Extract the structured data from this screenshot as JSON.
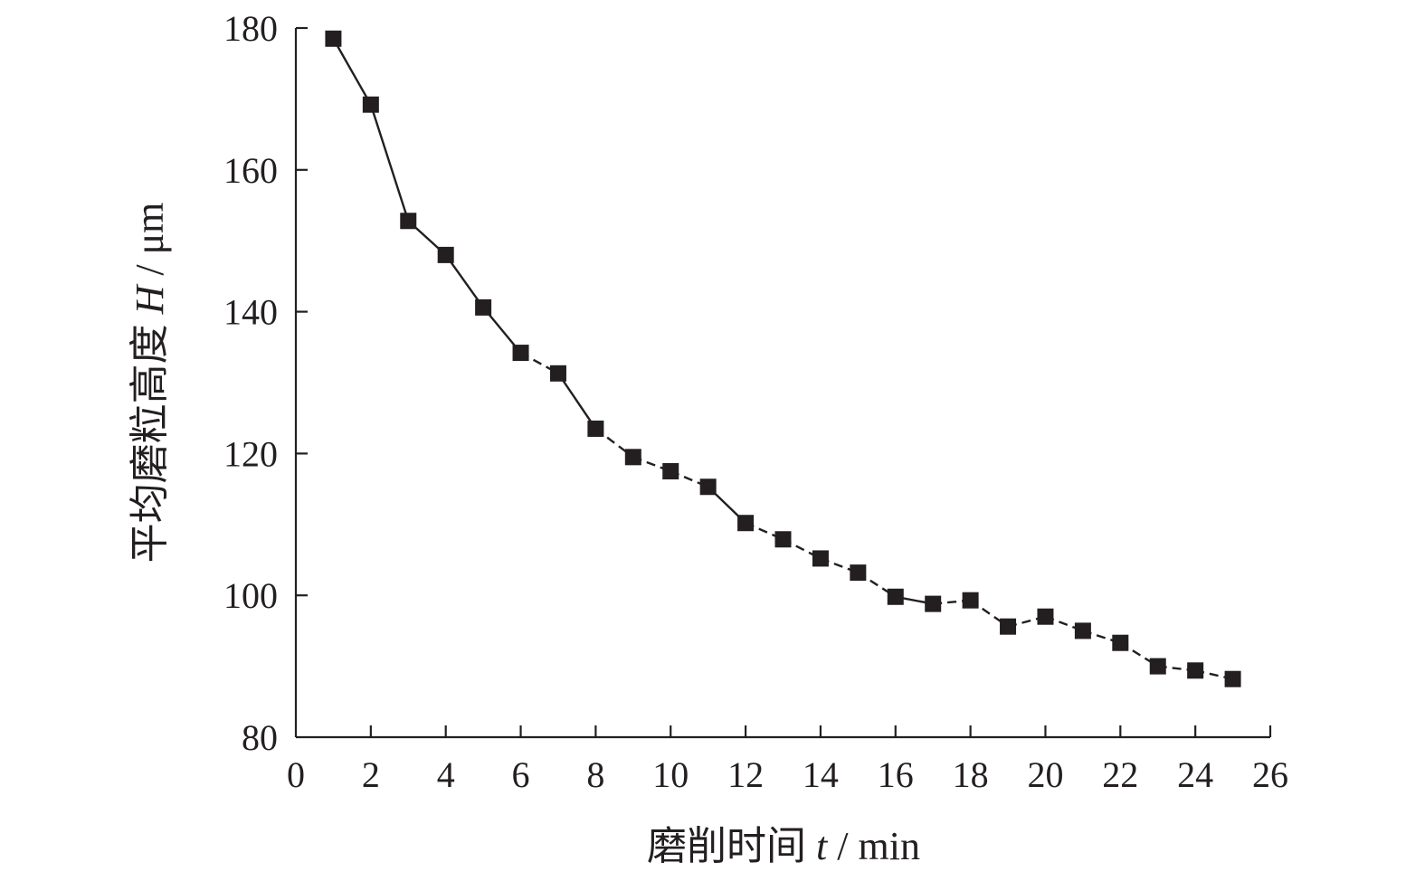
{
  "chart_data": {
    "type": "line",
    "marker": "square",
    "line_style_segments": [
      "solid",
      "solid",
      "solid",
      "solid",
      "solid",
      "dashed",
      "solid",
      "dashed",
      "dashed",
      "dashed",
      "solid",
      "dashed",
      "dashed",
      "dashed",
      "dashed",
      "solid",
      "dashed",
      "dashed",
      "dashed",
      "dashed",
      "dashed",
      "dashed",
      "dashed",
      "dashed"
    ],
    "xlabel": {
      "prefix": "磨削时间 ",
      "variable": "t",
      "unit": " / min"
    },
    "ylabel": {
      "prefix": "平均磨粒高度 ",
      "variable": "H",
      "unit": " / μm"
    },
    "xlim": [
      0,
      26
    ],
    "ylim": [
      80,
      180
    ],
    "xticks": [
      0,
      2,
      4,
      6,
      8,
      10,
      12,
      14,
      16,
      18,
      20,
      22,
      24,
      26
    ],
    "xtick_labels": [
      "0",
      "2",
      "4",
      "6",
      "8",
      "10",
      "12",
      "14",
      "16",
      "18",
      "20",
      "22",
      "24",
      "26"
    ],
    "yticks": [
      80,
      100,
      120,
      140,
      160,
      180
    ],
    "ytick_labels": [
      "80",
      "100",
      "120",
      "140",
      "160",
      "180"
    ],
    "grid": false,
    "series": [
      {
        "x": [
          1,
          2,
          3,
          4,
          5,
          6,
          7,
          8,
          9,
          10,
          11,
          12,
          13,
          14,
          15,
          16,
          17,
          18,
          19,
          20,
          21,
          22,
          23,
          24,
          25
        ],
        "y": [
          178.5,
          169.2,
          152.8,
          148.0,
          140.6,
          134.2,
          131.3,
          123.5,
          119.5,
          117.5,
          115.3,
          110.2,
          107.9,
          105.2,
          103.2,
          99.8,
          98.8,
          99.3,
          95.6,
          97.0,
          95.0,
          93.3,
          90.0,
          89.4,
          88.2
        ]
      }
    ],
    "colors": {
      "line": "#231f20",
      "marker": "#231f20",
      "axis": "#231f20",
      "text": "#231f20"
    }
  }
}
